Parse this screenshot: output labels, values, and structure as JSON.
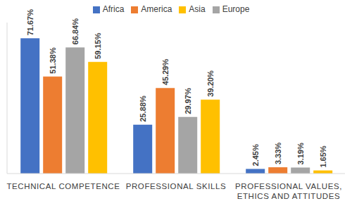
{
  "chart_data": {
    "type": "bar",
    "categories": [
      "TECHNICAL COMPETENCE",
      "PROFESSIONAL SKILLS",
      "PROFESSIONAL VALUES, ETHICS AND ATTITUDES"
    ],
    "series": [
      {
        "name": "Africa",
        "color": "#4472c4",
        "values": [
          71.67,
          25.88,
          2.45
        ],
        "value_labels": [
          "71.67%",
          "25.88%",
          "2.45%"
        ]
      },
      {
        "name": "America",
        "color": "#ed7d31",
        "values": [
          51.38,
          45.29,
          3.33
        ],
        "value_labels": [
          "51.38%",
          "45.29%",
          "3.33%"
        ]
      },
      {
        "name": "Europe",
        "color": "#a5a5a5",
        "values": [
          66.84,
          29.97,
          3.19
        ],
        "value_labels": [
          "66.84%",
          "29.97%",
          "3.19%"
        ]
      },
      {
        "name": "Asia",
        "color": "#ffc000",
        "values": [
          59.15,
          39.2,
          1.65
        ],
        "value_labels": [
          "59.15%",
          "39.20%",
          "1.65%"
        ]
      }
    ],
    "ylim": [
      0,
      80
    ],
    "legend": "top",
    "data_labels": true,
    "tick_labels": "x",
    "grid": false
  }
}
